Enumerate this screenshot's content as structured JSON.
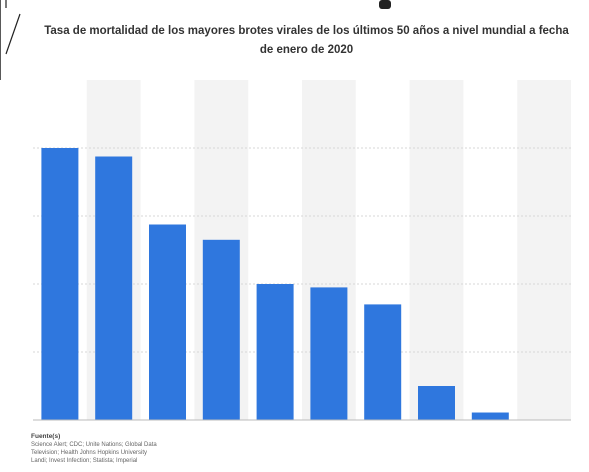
{
  "chart_data": {
    "type": "bar",
    "title": "Tasa de mortalidad de los mayores brotes virales de los últimos 50 años a nivel mundial a fecha de enero de 2020",
    "categories": [
      "",
      "",
      "",
      "",
      "",
      "",
      "",
      "",
      "",
      ""
    ],
    "values": [
      80,
      77.5,
      57.5,
      53,
      40,
      39,
      34,
      10,
      2.2,
      0
    ],
    "ylim": [
      0,
      100
    ],
    "grid": true,
    "legend": "none",
    "colors": {
      "bar": "#2f77de",
      "band": "#f3f3f3",
      "grid": "#d7d7d7",
      "baseline": "#bbbbbb"
    }
  },
  "source": {
    "heading": "Fuente(s)",
    "lines": [
      "Science Alert; CDC; Unite Nations; Global Data",
      "Television; Health Johns Hopkins University",
      "Landi; Invest Infection; Statista; Imperial"
    ]
  }
}
